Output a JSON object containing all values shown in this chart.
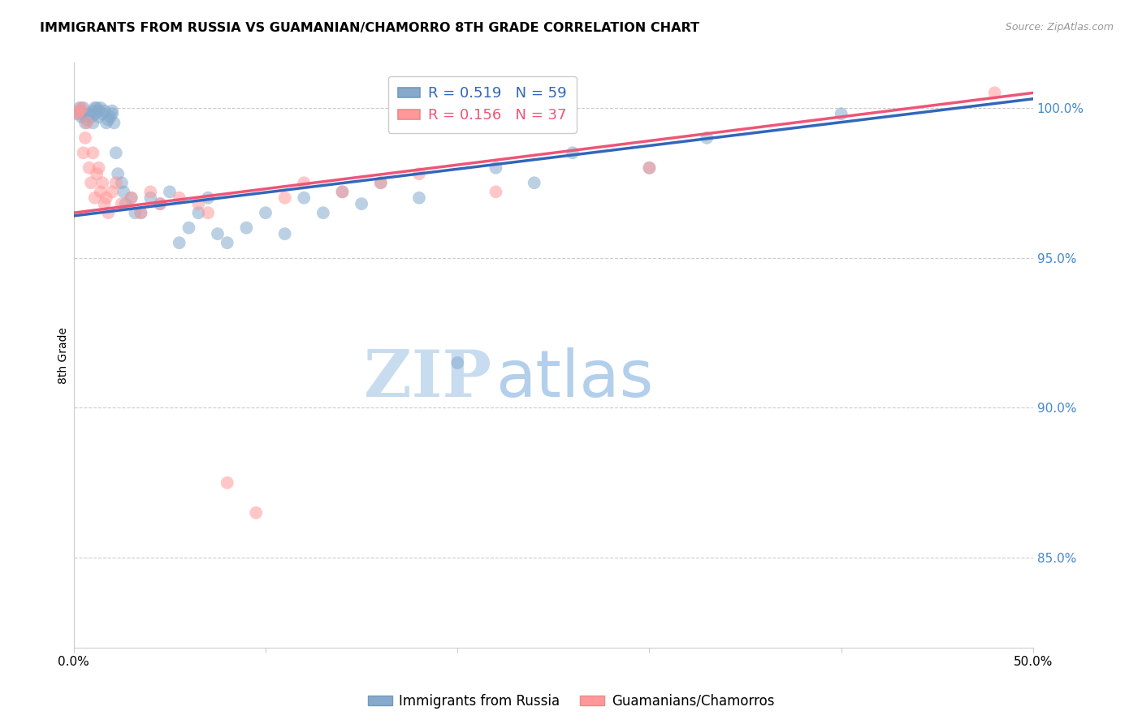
{
  "title": "IMMIGRANTS FROM RUSSIA VS GUAMANIAN/CHAMORRO 8TH GRADE CORRELATION CHART",
  "source": "Source: ZipAtlas.com",
  "ylabel_left": "8th Grade",
  "xlim": [
    0.0,
    50.0
  ],
  "ylim": [
    82.0,
    101.5
  ],
  "yticks": [
    85.0,
    90.0,
    95.0,
    100.0
  ],
  "ytick_labels": [
    "85.0%",
    "90.0%",
    "95.0%",
    "100.0%"
  ],
  "xticks": [
    0.0,
    10.0,
    20.0,
    30.0,
    40.0,
    50.0
  ],
  "xtick_labels": [
    "0.0%",
    "",
    "",
    "",
    "",
    "50.0%"
  ],
  "legend_blue_r": "R = 0.519",
  "legend_blue_n": "N = 59",
  "legend_pink_r": "R = 0.156",
  "legend_pink_n": "N = 37",
  "blue_color": "#85AACC",
  "pink_color": "#FF9999",
  "blue_line_color": "#3366BB",
  "pink_line_color": "#EE5577",
  "blue_line_x0": 0.0,
  "blue_line_y0": 96.4,
  "blue_line_x1": 50.0,
  "blue_line_y1": 100.3,
  "pink_line_x0": 0.0,
  "pink_line_y0": 96.5,
  "pink_line_x1": 50.0,
  "pink_line_y1": 100.5,
  "blue_scatter_x": [
    0.2,
    0.3,
    0.3,
    0.4,
    0.5,
    0.5,
    0.6,
    0.7,
    0.8,
    0.9,
    1.0,
    1.0,
    1.1,
    1.1,
    1.2,
    1.3,
    1.3,
    1.4,
    1.5,
    1.6,
    1.7,
    1.8,
    1.9,
    2.0,
    2.0,
    2.1,
    2.2,
    2.3,
    2.5,
    2.6,
    2.7,
    3.0,
    3.2,
    3.5,
    4.0,
    4.5,
    5.0,
    5.5,
    6.0,
    6.5,
    7.0,
    7.5,
    8.0,
    9.0,
    10.0,
    11.0,
    12.0,
    13.0,
    14.0,
    15.0,
    16.0,
    18.0,
    20.0,
    22.0,
    24.0,
    26.0,
    30.0,
    33.0,
    40.0
  ],
  "blue_scatter_y": [
    99.8,
    99.9,
    100.0,
    99.7,
    99.8,
    100.0,
    99.5,
    99.6,
    99.8,
    99.7,
    99.5,
    99.9,
    100.0,
    99.8,
    100.0,
    99.7,
    99.9,
    100.0,
    99.8,
    99.9,
    99.5,
    99.6,
    99.7,
    99.8,
    99.9,
    99.5,
    98.5,
    97.8,
    97.5,
    97.2,
    96.8,
    97.0,
    96.5,
    96.5,
    97.0,
    96.8,
    97.2,
    95.5,
    96.0,
    96.5,
    97.0,
    95.8,
    95.5,
    96.0,
    96.5,
    95.8,
    97.0,
    96.5,
    97.2,
    96.8,
    97.5,
    97.0,
    91.5,
    98.0,
    97.5,
    98.5,
    98.0,
    99.0,
    99.8
  ],
  "pink_scatter_x": [
    0.2,
    0.3,
    0.4,
    0.5,
    0.6,
    0.7,
    0.8,
    0.9,
    1.0,
    1.1,
    1.2,
    1.3,
    1.4,
    1.5,
    1.6,
    1.7,
    1.8,
    2.0,
    2.2,
    2.5,
    3.0,
    3.5,
    4.0,
    4.5,
    5.5,
    6.5,
    7.0,
    8.0,
    9.5,
    11.0,
    12.0,
    14.0,
    16.0,
    18.0,
    22.0,
    30.0,
    48.0
  ],
  "pink_scatter_y": [
    99.8,
    99.9,
    100.0,
    98.5,
    99.0,
    99.5,
    98.0,
    97.5,
    98.5,
    97.0,
    97.8,
    98.0,
    97.2,
    97.5,
    96.8,
    97.0,
    96.5,
    97.2,
    97.5,
    96.8,
    97.0,
    96.5,
    97.2,
    96.8,
    97.0,
    96.8,
    96.5,
    87.5,
    86.5,
    97.0,
    97.5,
    97.2,
    97.5,
    97.8,
    97.2,
    98.0,
    100.5
  ]
}
